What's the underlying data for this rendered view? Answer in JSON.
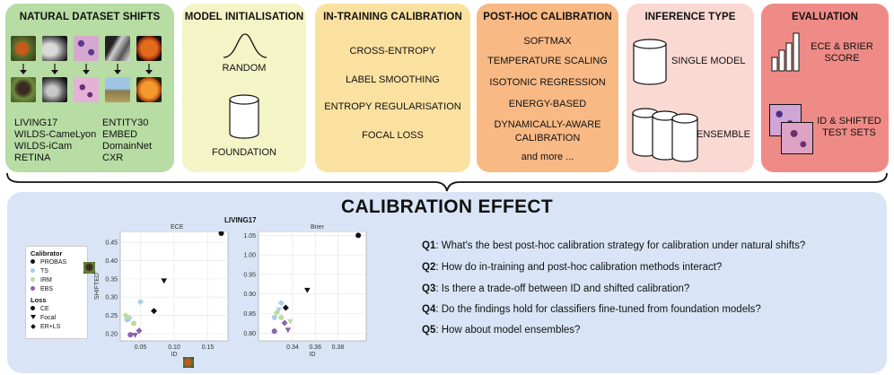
{
  "panels": {
    "natural_shifts": {
      "title": "NATURAL DATASET SHIFTS",
      "col1": [
        "LIVING17",
        "WILDS-CameLyon",
        "WILDS-iCam",
        "RETINA"
      ],
      "col2": [
        "ENTITY30",
        "EMBED",
        "DomainNet",
        "CXR"
      ]
    },
    "model_init": {
      "title": "MODEL INITIALISATION",
      "items": [
        "RANDOM",
        "FOUNDATION"
      ]
    },
    "in_training": {
      "title": "IN-TRAINING CALIBRATION",
      "items": [
        "CROSS-ENTROPY",
        "LABEL SMOOTHING",
        "ENTROPY REGULARISATION",
        "FOCAL LOSS"
      ]
    },
    "post_hoc": {
      "title": "POST-HOC CALIBRATION",
      "items": [
        "SOFTMAX",
        "TEMPERATURE SCALING",
        "ISOTONIC REGRESSION",
        "ENERGY-BASED",
        "DYNAMICALLY-AWARE",
        "CALIBRATION",
        "and more ..."
      ]
    },
    "inference": {
      "title": "INFERENCE TYPE",
      "items": [
        "SINGLE MODEL",
        "ENSEMBLE"
      ]
    },
    "evaluation": {
      "title": "EVALUATION",
      "items": [
        "ECE & BRIER",
        "SCORE",
        "ID & SHIFTED",
        "TEST SETS"
      ]
    }
  },
  "bottom": {
    "title": "CALIBRATION EFFECT",
    "questions": [
      {
        "label": "Q1",
        "text": ": What's the best post-hoc calibration strategy for calibration under natural shifts?"
      },
      {
        "label": "Q2",
        "text": ": How do in-training and post-hoc calibration methods interact?"
      },
      {
        "label": "Q3",
        "text": ": Is there a trade-off between ID and shifted calibration?"
      },
      {
        "label": "Q4",
        "text": ": Do the findings hold for classifiers fine-tuned from foundation models?"
      },
      {
        "label": "Q5",
        "text": ": How about model ensembles?"
      }
    ]
  },
  "legend": {
    "calibrator_title": "Calibrator",
    "calibrators": [
      {
        "name": "PROBAS",
        "color": "#111111"
      },
      {
        "name": "TS",
        "color": "#a8cfe6"
      },
      {
        "name": "IRM",
        "color": "#b9dd9a"
      },
      {
        "name": "EBS",
        "color": "#8a62ad"
      }
    ],
    "loss_title": "Loss",
    "losses": [
      {
        "name": "CE",
        "marker": "circle"
      },
      {
        "name": "Focal",
        "marker": "triangle"
      },
      {
        "name": "ER+LS",
        "marker": "diamond"
      }
    ]
  },
  "chart_data": {
    "title": "LIVING17",
    "charts": [
      {
        "type": "scatter",
        "title": "ECE",
        "xlabel": "ID",
        "ylabel": "SHIFTED",
        "xlim": [
          0.02,
          0.18
        ],
        "ylim": [
          0.18,
          0.48
        ],
        "xticks": [
          "0.05",
          "0.10",
          "0.15"
        ],
        "yticks": [
          "0.20",
          "0.25",
          "0.30",
          "0.35",
          "0.40",
          "0.45"
        ],
        "points": [
          {
            "x": 0.17,
            "y": 0.475,
            "calibrator": "PROBAS",
            "loss": "CE"
          },
          {
            "x": 0.085,
            "y": 0.345,
            "calibrator": "PROBAS",
            "loss": "Focal"
          },
          {
            "x": 0.07,
            "y": 0.262,
            "calibrator": "PROBAS",
            "loss": "ER+LS"
          },
          {
            "x": 0.05,
            "y": 0.287,
            "calibrator": "TS",
            "loss": "ER+LS"
          },
          {
            "x": 0.03,
            "y": 0.238,
            "calibrator": "TS",
            "loss": "CE"
          },
          {
            "x": 0.034,
            "y": 0.24,
            "calibrator": "TS",
            "loss": "Focal"
          },
          {
            "x": 0.028,
            "y": 0.25,
            "calibrator": "IRM",
            "loss": "ER+LS"
          },
          {
            "x": 0.032,
            "y": 0.245,
            "calibrator": "IRM",
            "loss": "Focal"
          },
          {
            "x": 0.04,
            "y": 0.228,
            "calibrator": "IRM",
            "loss": "CE"
          },
          {
            "x": 0.035,
            "y": 0.197,
            "calibrator": "EBS",
            "loss": "CE"
          },
          {
            "x": 0.042,
            "y": 0.196,
            "calibrator": "EBS",
            "loss": "Focal"
          },
          {
            "x": 0.048,
            "y": 0.208,
            "calibrator": "EBS",
            "loss": "ER+LS"
          }
        ]
      },
      {
        "type": "scatter",
        "title": "Brier",
        "xlabel": "ID",
        "ylabel": "",
        "xlim": [
          0.31,
          0.405
        ],
        "ylim": [
          0.78,
          1.06
        ],
        "xticks": [
          "0.34",
          "0.36",
          "0.38"
        ],
        "yticks": [
          "0.80",
          "0.85",
          "0.90",
          "0.95",
          "1.00",
          "1.05"
        ],
        "points": [
          {
            "x": 0.398,
            "y": 1.05,
            "calibrator": "PROBAS",
            "loss": "CE"
          },
          {
            "x": 0.353,
            "y": 0.91,
            "calibrator": "PROBAS",
            "loss": "Focal"
          },
          {
            "x": 0.334,
            "y": 0.865,
            "calibrator": "PROBAS",
            "loss": "ER+LS"
          },
          {
            "x": 0.33,
            "y": 0.877,
            "calibrator": "TS",
            "loss": "ER+LS"
          },
          {
            "x": 0.324,
            "y": 0.84,
            "calibrator": "TS",
            "loss": "CE"
          },
          {
            "x": 0.328,
            "y": 0.86,
            "calibrator": "TS",
            "loss": "Focal"
          },
          {
            "x": 0.326,
            "y": 0.852,
            "calibrator": "IRM",
            "loss": "ER+LS"
          },
          {
            "x": 0.338,
            "y": 0.83,
            "calibrator": "IRM",
            "loss": "Focal"
          },
          {
            "x": 0.33,
            "y": 0.84,
            "calibrator": "IRM",
            "loss": "CE"
          },
          {
            "x": 0.324,
            "y": 0.805,
            "calibrator": "EBS",
            "loss": "CE"
          },
          {
            "x": 0.336,
            "y": 0.808,
            "calibrator": "EBS",
            "loss": "Focal"
          },
          {
            "x": 0.333,
            "y": 0.826,
            "calibrator": "EBS",
            "loss": "ER+LS"
          }
        ]
      }
    ]
  }
}
